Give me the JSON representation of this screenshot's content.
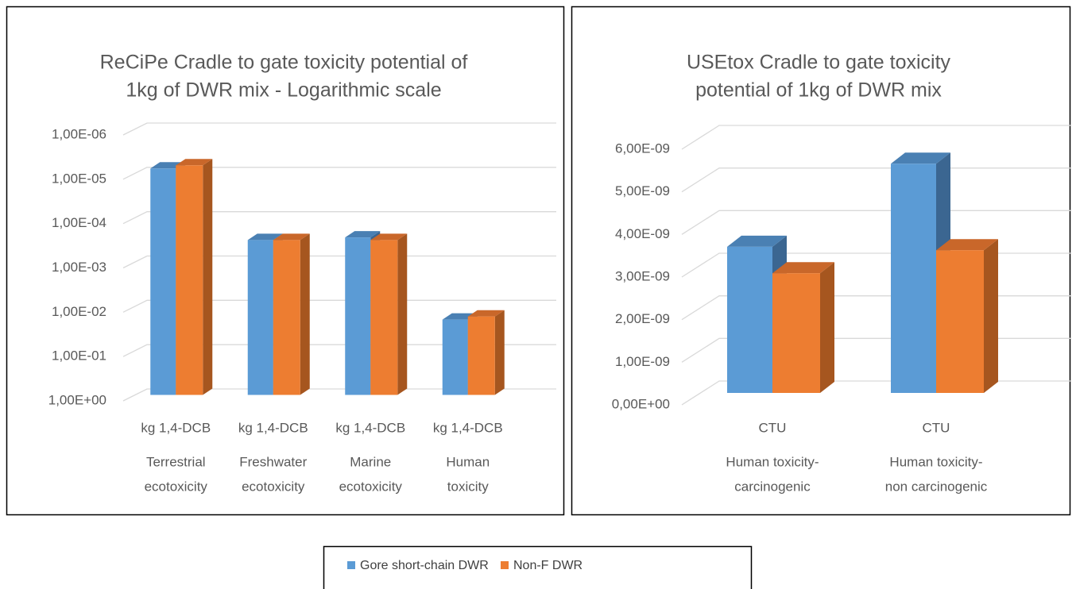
{
  "chart_data": [
    {
      "type": "bar3d",
      "title": [
        "ReCiPe Cradle to gate toxicity potential of",
        "1kg of DWR mix - Logarithmic scale"
      ],
      "categories": [
        [
          "Terrestrial",
          "ecotoxicity"
        ],
        [
          "Freshwater",
          "ecotoxicity"
        ],
        [
          "Marine",
          "ecotoxicity"
        ],
        [
          "Human",
          "toxicity"
        ]
      ],
      "units": [
        "kg 1,4-DCB",
        "kg 1,4-DCB",
        "kg 1,4-DCB",
        "kg 1,4-DCB"
      ],
      "series": [
        {
          "values": [
            7.8e-06,
            0.00032,
            0.00028,
            0.02
          ]
        },
        {
          "values": [
            6.6e-06,
            0.00032,
            0.00032,
            0.017
          ]
        }
      ],
      "log_scale": true,
      "ylim": [
        1,
        1e-06
      ],
      "yticks": [
        {
          "value": 1,
          "label": "1,00E+00"
        },
        {
          "value": 0.1,
          "label": "1,00E-01"
        },
        {
          "value": 0.01,
          "label": "1,00E-02"
        },
        {
          "value": 0.001,
          "label": "1,00E-03"
        },
        {
          "value": 0.0001,
          "label": "1,00E-04"
        },
        {
          "value": 1e-05,
          "label": "1,00E-05"
        },
        {
          "value": 1e-06,
          "label": "1,00E-06"
        }
      ],
      "grid": true
    },
    {
      "type": "bar3d",
      "title": [
        "USEtox Cradle to gate toxicity",
        "potential of 1kg of DWR mix"
      ],
      "categories": [
        [
          "Human toxicity-",
          "carcinogenic"
        ],
        [
          "Human toxicity-",
          "non carcinogenic"
        ]
      ],
      "units": [
        "CTU",
        "CTU"
      ],
      "series": [
        {
          "values": [
            3.43e-09,
            5.38e-09
          ]
        },
        {
          "values": [
            2.81e-09,
            3.35e-09
          ]
        }
      ],
      "log_scale": false,
      "ylim": [
        0,
        6e-09
      ],
      "yticks": [
        {
          "value": 0,
          "label": "0,00E+00"
        },
        {
          "value": 1e-09,
          "label": "1,00E-09"
        },
        {
          "value": 2e-09,
          "label": "2,00E-09"
        },
        {
          "value": 3e-09,
          "label": "3,00E-09"
        },
        {
          "value": 4e-09,
          "label": "4,00E-09"
        },
        {
          "value": 5e-09,
          "label": "5,00E-09"
        },
        {
          "value": 6e-09,
          "label": "6,00E-09"
        }
      ],
      "grid": true
    }
  ],
  "legend": [
    {
      "name": "Gore short-chain DWR",
      "color": "#5b9bd5",
      "top": "#4a80b3",
      "side": "#3b6691"
    },
    {
      "name": "Non-F DWR",
      "color": "#ed7d31",
      "top": "#c9672a",
      "side": "#a6561f"
    }
  ]
}
